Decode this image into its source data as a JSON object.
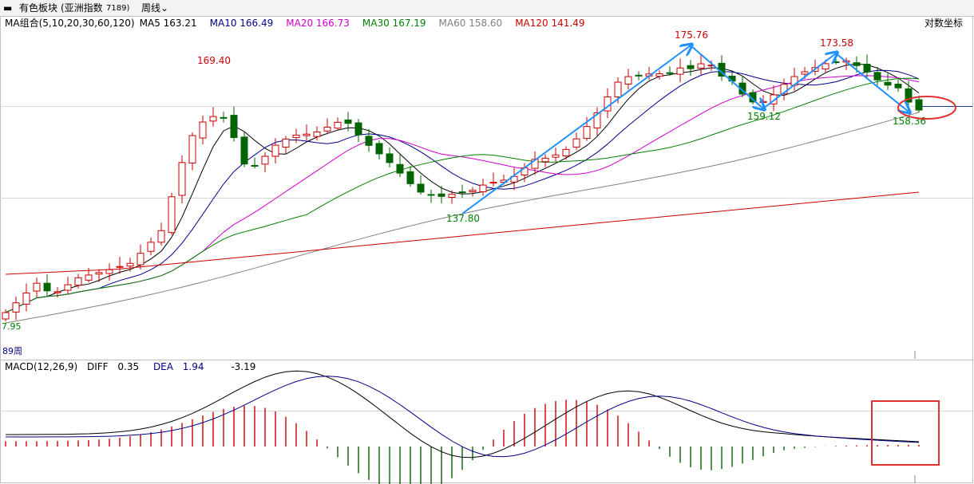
{
  "toolbar": {
    "dash_icon": "dash-icon",
    "sector_label": "有色板块",
    "index_label": "(亚洲指数",
    "code": "7189)",
    "period_label": "周线"
  },
  "main_panel": {
    "indicator": "MA组合(5,10,20,30,60,120)",
    "ma_items": [
      {
        "label": "MA5",
        "value": "163.21",
        "color": "#000000"
      },
      {
        "label": "MA10",
        "value": "166.49",
        "color": "#00008b"
      },
      {
        "label": "MA20",
        "value": "166.73",
        "color": "#cc00cc"
      },
      {
        "label": "MA30",
        "value": "167.19",
        "color": "#008000"
      },
      {
        "label": "MA60",
        "value": "158.60",
        "color": "#808080"
      },
      {
        "label": "MA120",
        "value": "141.49",
        "color": "#cc0000"
      }
    ],
    "log_scale_label": "对数坐标",
    "bottom_left_value": "7.95",
    "bar_count_label": "89周"
  },
  "macd_panel": {
    "indicator": "MACD(12,26,9)",
    "diff_label": "DIFF",
    "diff_value": "0.35",
    "dea_label": "DEA",
    "dea_value": "1.94",
    "macd_value": "-3.19"
  },
  "chart_data": {
    "type": "candlestick",
    "annotations": [
      {
        "text": "169.40",
        "kind": "high",
        "color": "#cc0000"
      },
      {
        "text": "137.80",
        "kind": "low",
        "color": "#008000"
      },
      {
        "text": "175.76",
        "kind": "high",
        "color": "#cc0000"
      },
      {
        "text": "159.12",
        "kind": "low",
        "color": "#008000"
      },
      {
        "text": "173.58",
        "kind": "high",
        "color": "#cc0000"
      },
      {
        "text": "158.36",
        "kind": "low",
        "color": "#008000"
      }
    ],
    "colors": {
      "up": "#cc0000",
      "down": "#006400",
      "trend_arrow": "#1e90ff",
      "highlight": "#e03030"
    }
  }
}
